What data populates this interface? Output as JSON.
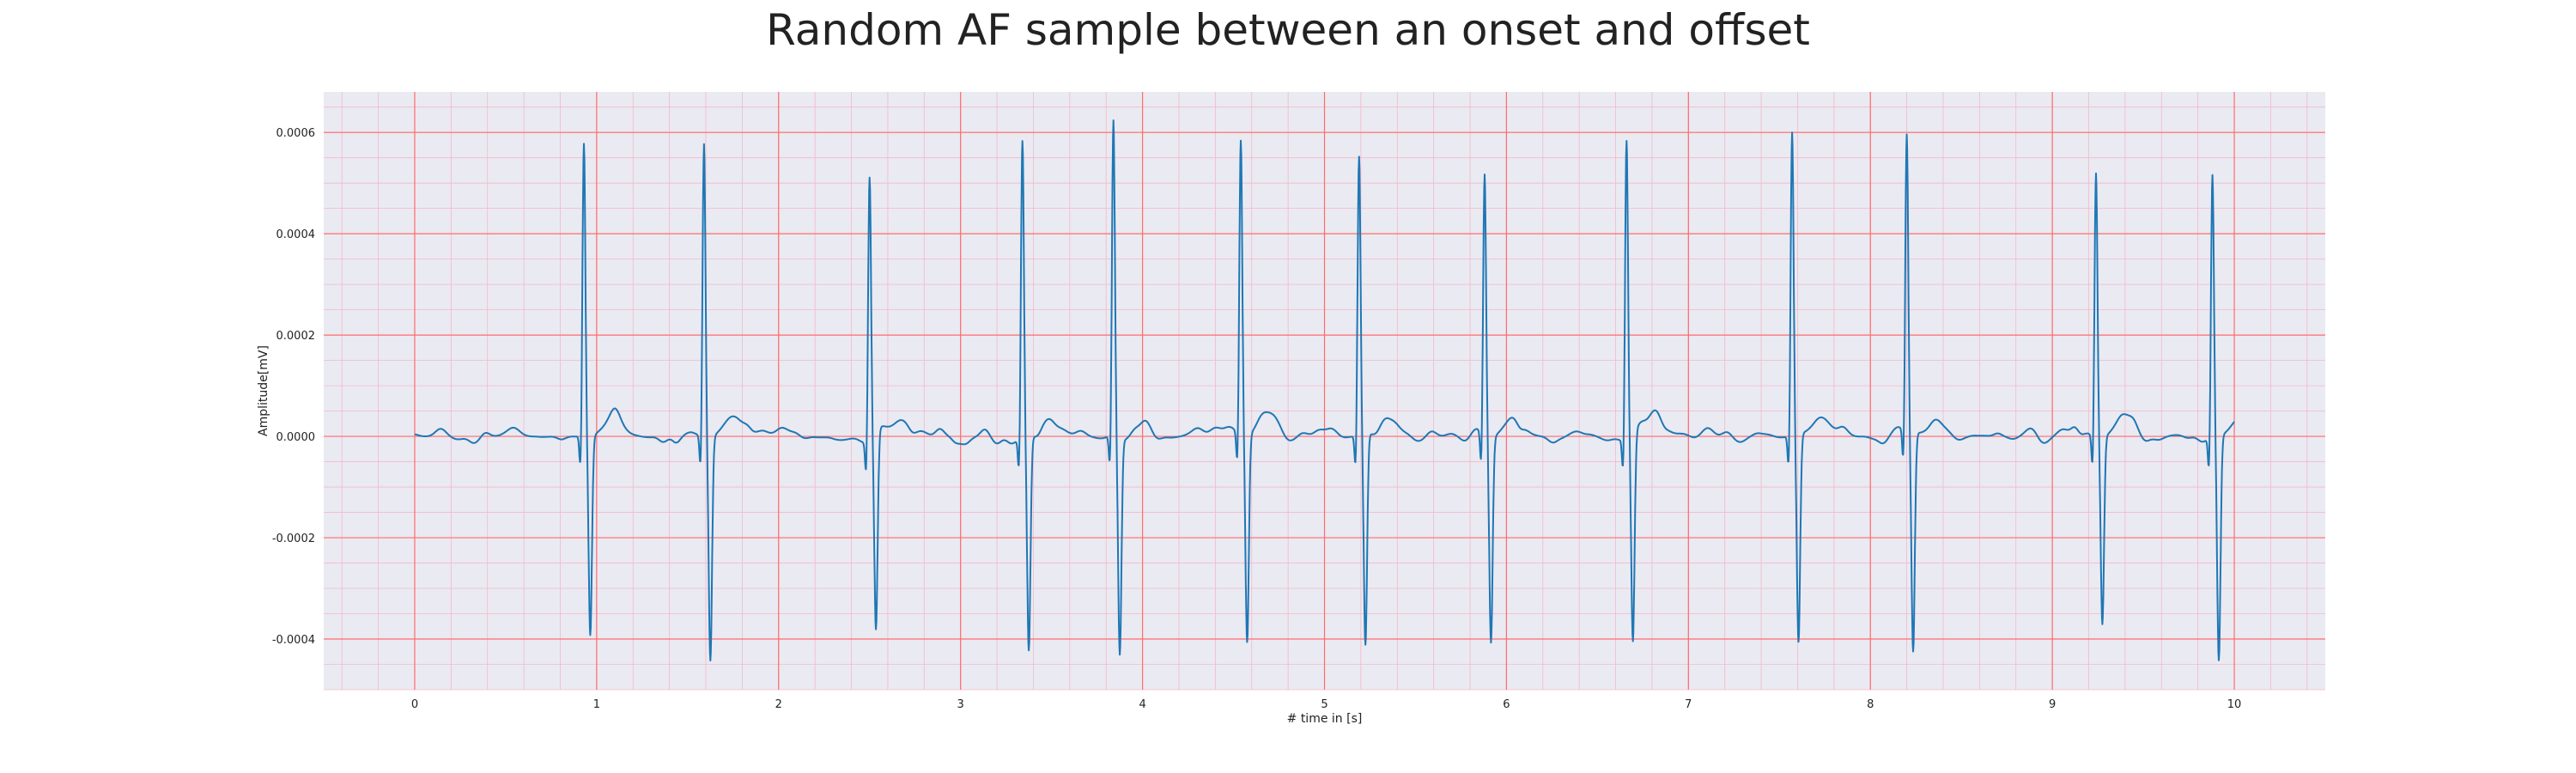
{
  "chart_data": {
    "type": "line",
    "title": "Random AF sample between an onset and offset",
    "xlabel": "# time in [s]",
    "ylabel": "Amplitude[mV]",
    "xlim": [
      -0.5,
      10.5
    ],
    "ylim": [
      -0.0005,
      0.00068
    ],
    "x_ticks": [
      0,
      1,
      2,
      3,
      4,
      5,
      6,
      7,
      8,
      9,
      10
    ],
    "y_ticks": [
      -0.0004,
      -0.0002,
      0.0,
      0.0002,
      0.0004,
      0.0006
    ],
    "y_tick_labels": [
      "-0.0004",
      "-0.0002",
      "0.0000",
      "0.0002",
      "0.0004",
      "0.0006"
    ],
    "grid": true,
    "minor_grid": true,
    "legend": false,
    "colors": {
      "background": "#EAEAF2",
      "major_grid": "#FF6B6B",
      "minor_grid": "#F4B8C8",
      "line": "#1F77B4"
    },
    "series": [
      {
        "beats": [
          {
            "t": 0.93,
            "peak": 0.00058,
            "trough": -0.00039
          },
          {
            "t": 1.59,
            "peak": 0.00058,
            "trough": -0.00044
          },
          {
            "t": 2.5,
            "peak": 0.00052,
            "trough": -0.00039
          },
          {
            "t": 3.34,
            "peak": 0.00059,
            "trough": -0.00042
          },
          {
            "t": 3.84,
            "peak": 0.00062,
            "trough": -0.00043
          },
          {
            "t": 4.54,
            "peak": 0.00058,
            "trough": -0.00041
          },
          {
            "t": 5.19,
            "peak": 0.00055,
            "trough": -0.00042
          },
          {
            "t": 5.88,
            "peak": 0.00052,
            "trough": -0.0004
          },
          {
            "t": 6.66,
            "peak": 0.00059,
            "trough": -0.00041
          },
          {
            "t": 7.57,
            "peak": 0.0006,
            "trough": -0.00041
          },
          {
            "t": 8.2,
            "peak": 0.00059,
            "trough": -0.00043
          },
          {
            "t": 9.24,
            "peak": 0.00052,
            "trough": -0.00037
          },
          {
            "t": 9.88,
            "peak": 0.00052,
            "trough": -0.00044
          }
        ],
        "time_range": [
          0,
          10
        ]
      }
    ]
  }
}
